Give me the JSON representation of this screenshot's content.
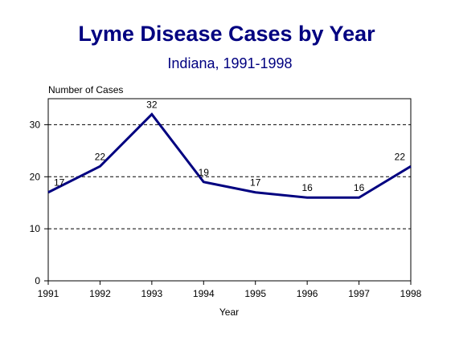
{
  "chart_data": {
    "type": "line",
    "title": "Lyme Disease Cases by Year",
    "subtitle": "Indiana, 1991-1998",
    "xlabel": "Year",
    "ylabel": "Number of Cases",
    "x": [
      "1991",
      "1992",
      "1993",
      "1994",
      "1995",
      "1996",
      "1997",
      "1998"
    ],
    "values": [
      17,
      22,
      32,
      19,
      17,
      16,
      16,
      22
    ],
    "ylim": [
      0,
      35
    ],
    "yticks": [
      0,
      10,
      20,
      30
    ],
    "grid": "horizontal-dashed",
    "line_color": "#000080"
  }
}
